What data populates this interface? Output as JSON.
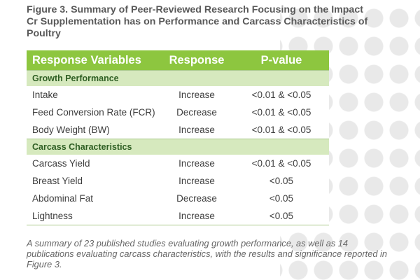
{
  "figure": {
    "title": "Figure 3. Summary of Peer-Reviewed Research Focusing on the Impact Cr Supplementation has on Performance and Carcass Characteristics of Poultry",
    "caption": "A summary of 23 published studies evaluating growth performance, as well as 14 publications evaluating carcass characteristics, with the results and significance reported in Figure 3."
  },
  "table": {
    "headers": [
      "Response Variables",
      "Response",
      "P-value"
    ],
    "sections": [
      {
        "label": "Growth Performance",
        "rows": [
          [
            "Intake",
            "Increase",
            "<0.01 & <0.05"
          ],
          [
            "Feed Conversion Rate (FCR)",
            "Decrease",
            "<0.01 & <0.05"
          ],
          [
            "Body Weight (BW)",
            "Increase",
            "<0.01 & <0.05"
          ]
        ]
      },
      {
        "label": "Carcass Characteristics",
        "rows": [
          [
            "Carcass Yield",
            "Increase",
            "<0.01 & <0.05"
          ],
          [
            "Breast Yield",
            "Increase",
            "<0.05"
          ],
          [
            "Abdominal Fat",
            "Decrease",
            "<0.05"
          ],
          [
            "Lightness",
            "Increase",
            "<0.05"
          ]
        ]
      }
    ]
  },
  "colors": {
    "header_bg": "#8dc63f",
    "section_bg": "#d6e9be",
    "title_text": "#595959"
  }
}
